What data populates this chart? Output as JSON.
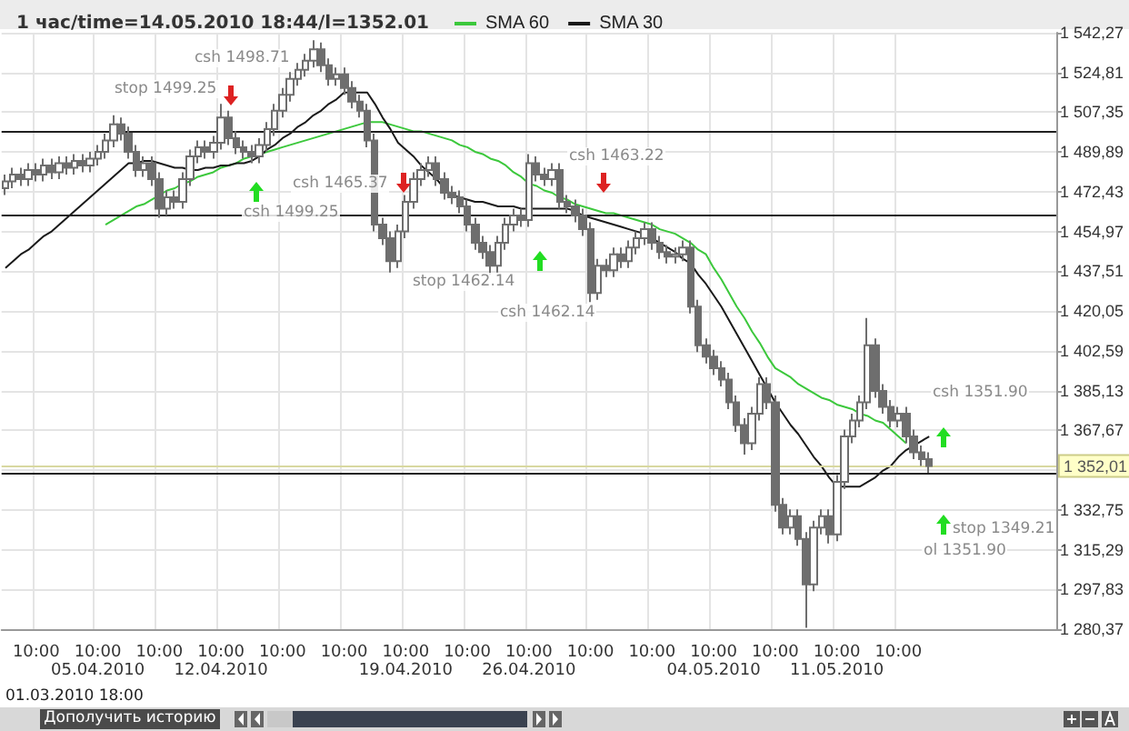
{
  "chart_data": {
    "type": "candlestick",
    "title": "1 час/time=14.05.2010 18:44/l=1352.01",
    "categories": [
      null,
      null,
      null,
      null,
      "10:00",
      null,
      null,
      null,
      null,
      null,
      null,
      null,
      "10:00\n05.04.2010",
      null,
      null,
      null,
      null,
      null,
      null,
      null,
      "10:00",
      null,
      null,
      null,
      null,
      null,
      null,
      null,
      "10:00\n12.04.2010",
      null,
      null,
      null,
      null,
      null,
      null,
      null,
      "10:00",
      null,
      null,
      null,
      null,
      null,
      null,
      null,
      "10:00",
      null,
      null,
      null,
      null,
      null,
      null,
      null,
      "10:00\n19.04.2010",
      null,
      null,
      null,
      null,
      null,
      null,
      null,
      "10:00",
      null,
      null,
      null,
      null,
      null,
      null,
      null,
      "10:00\n26.04.2010",
      null,
      null,
      null,
      null,
      null,
      null,
      null,
      "10:00",
      null,
      null,
      null,
      null,
      null,
      null,
      null,
      "10:00",
      null,
      null,
      null,
      null,
      null,
      null,
      null,
      "10:00\n04.05.2010",
      null,
      null,
      null,
      null,
      null,
      null,
      null,
      "10:00",
      null,
      null,
      null,
      null,
      null,
      null,
      null,
      "10:00\n11.05.2010",
      null,
      null,
      null,
      null,
      null,
      null,
      null,
      "10:00",
      null,
      null,
      null,
      null,
      null,
      null,
      null,
      null,
      null,
      null,
      null,
      null,
      null,
      null,
      null,
      null,
      null,
      null,
      null,
      null
    ],
    "ohlc": [
      [
        1474,
        1480,
        1471,
        1477
      ],
      [
        1477,
        1483,
        1474,
        1480
      ],
      [
        1480,
        1483,
        1475,
        1478
      ],
      [
        1478,
        1485,
        1475,
        1482
      ],
      [
        1482,
        1485,
        1477,
        1480
      ],
      [
        1480,
        1487,
        1477,
        1484
      ],
      [
        1484,
        1487,
        1478,
        1481
      ],
      [
        1481,
        1488,
        1478,
        1485
      ],
      [
        1485,
        1488,
        1480,
        1483
      ],
      [
        1483,
        1489,
        1480,
        1486
      ],
      [
        1486,
        1489,
        1481,
        1484
      ],
      [
        1484,
        1490,
        1481,
        1487
      ],
      [
        1487,
        1493,
        1484,
        1490
      ],
      [
        1490,
        1498,
        1487,
        1495
      ],
      [
        1495,
        1506,
        1492,
        1502
      ],
      [
        1502,
        1505,
        1495,
        1498
      ],
      [
        1498,
        1501,
        1487,
        1490
      ],
      [
        1490,
        1493,
        1479,
        1482
      ],
      [
        1482,
        1488,
        1479,
        1485
      ],
      [
        1485,
        1488,
        1475,
        1478
      ],
      [
        1478,
        1481,
        1461,
        1465
      ],
      [
        1465,
        1473,
        1462,
        1470
      ],
      [
        1470,
        1473,
        1465,
        1468
      ],
      [
        1468,
        1481,
        1465,
        1478
      ],
      [
        1478,
        1491,
        1475,
        1488
      ],
      [
        1488,
        1495,
        1485,
        1492
      ],
      [
        1492,
        1495,
        1487,
        1490
      ],
      [
        1490,
        1497,
        1487,
        1494
      ],
      [
        1494,
        1511,
        1491,
        1505
      ],
      [
        1505,
        1508,
        1493,
        1496
      ],
      [
        1496,
        1499,
        1489,
        1492
      ],
      [
        1492,
        1495,
        1487,
        1490
      ],
      [
        1490,
        1493,
        1485,
        1488
      ],
      [
        1488,
        1496,
        1485,
        1493
      ],
      [
        1493,
        1503,
        1490,
        1500
      ],
      [
        1500,
        1511,
        1497,
        1508
      ],
      [
        1508,
        1518,
        1505,
        1515
      ],
      [
        1515,
        1525,
        1512,
        1522
      ],
      [
        1522,
        1529,
        1519,
        1526
      ],
      [
        1526,
        1533,
        1523,
        1530
      ],
      [
        1530,
        1539,
        1527,
        1535
      ],
      [
        1535,
        1538,
        1525,
        1528
      ],
      [
        1528,
        1531,
        1519,
        1522
      ],
      [
        1522,
        1527,
        1519,
        1524
      ],
      [
        1524,
        1527,
        1515,
        1518
      ],
      [
        1518,
        1521,
        1509,
        1512
      ],
      [
        1512,
        1515,
        1505,
        1508
      ],
      [
        1508,
        1511,
        1492,
        1495
      ],
      [
        1495,
        1498,
        1455,
        1458
      ],
      [
        1458,
        1461,
        1449,
        1452
      ],
      [
        1452,
        1455,
        1437,
        1442
      ],
      [
        1442,
        1458,
        1439,
        1455
      ],
      [
        1455,
        1471,
        1452,
        1468
      ],
      [
        1468,
        1481,
        1465,
        1478
      ],
      [
        1478,
        1485,
        1475,
        1482
      ],
      [
        1482,
        1488,
        1479,
        1485
      ],
      [
        1485,
        1488,
        1475,
        1478
      ],
      [
        1478,
        1481,
        1469,
        1472
      ],
      [
        1472,
        1475,
        1467,
        1470
      ],
      [
        1470,
        1473,
        1463,
        1466
      ],
      [
        1466,
        1469,
        1455,
        1458
      ],
      [
        1458,
        1461,
        1447,
        1450
      ],
      [
        1450,
        1453,
        1443,
        1446
      ],
      [
        1446,
        1449,
        1436,
        1440
      ],
      [
        1440,
        1453,
        1437,
        1450
      ],
      [
        1450,
        1461,
        1447,
        1458
      ],
      [
        1458,
        1465,
        1455,
        1462
      ],
      [
        1462,
        1465,
        1457,
        1460
      ],
      [
        1460,
        1489,
        1457,
        1485
      ],
      [
        1485,
        1488,
        1477,
        1480
      ],
      [
        1480,
        1483,
        1475,
        1478
      ],
      [
        1478,
        1485,
        1475,
        1482
      ],
      [
        1482,
        1485,
        1465,
        1468
      ],
      [
        1468,
        1471,
        1463,
        1466
      ],
      [
        1466,
        1469,
        1459,
        1462
      ],
      [
        1462,
        1465,
        1453,
        1456
      ],
      [
        1456,
        1459,
        1424,
        1428
      ],
      [
        1428,
        1443,
        1425,
        1440
      ],
      [
        1440,
        1443,
        1435,
        1438
      ],
      [
        1438,
        1448,
        1435,
        1445
      ],
      [
        1445,
        1448,
        1439,
        1442
      ],
      [
        1442,
        1451,
        1439,
        1448
      ],
      [
        1448,
        1455,
        1445,
        1452
      ],
      [
        1452,
        1459,
        1449,
        1456
      ],
      [
        1456,
        1459,
        1447,
        1450
      ],
      [
        1450,
        1453,
        1443,
        1446
      ],
      [
        1446,
        1449,
        1441,
        1444
      ],
      [
        1444,
        1448,
        1441,
        1445
      ],
      [
        1445,
        1451,
        1442,
        1448
      ],
      [
        1448,
        1451,
        1419,
        1422
      ],
      [
        1422,
        1425,
        1402,
        1405
      ],
      [
        1405,
        1408,
        1397,
        1400
      ],
      [
        1400,
        1403,
        1392,
        1395
      ],
      [
        1395,
        1398,
        1387,
        1390
      ],
      [
        1390,
        1393,
        1377,
        1380
      ],
      [
        1380,
        1383,
        1367,
        1370
      ],
      [
        1370,
        1373,
        1357,
        1362
      ],
      [
        1362,
        1378,
        1359,
        1375
      ],
      [
        1375,
        1391,
        1372,
        1388
      ],
      [
        1388,
        1391,
        1377,
        1380
      ],
      [
        1380,
        1383,
        1332,
        1335
      ],
      [
        1335,
        1338,
        1322,
        1325
      ],
      [
        1325,
        1333,
        1322,
        1330
      ],
      [
        1330,
        1333,
        1317,
        1320
      ],
      [
        1320,
        1323,
        1281,
        1300
      ],
      [
        1300,
        1328,
        1297,
        1325
      ],
      [
        1325,
        1333,
        1322,
        1330
      ],
      [
        1330,
        1333,
        1318,
        1322
      ],
      [
        1322,
        1348,
        1319,
        1345
      ],
      [
        1345,
        1368,
        1342,
        1365
      ],
      [
        1365,
        1375,
        1362,
        1372
      ],
      [
        1372,
        1383,
        1369,
        1380
      ],
      [
        1380,
        1417,
        1377,
        1405
      ],
      [
        1405,
        1408,
        1382,
        1385
      ],
      [
        1385,
        1388,
        1375,
        1378
      ],
      [
        1378,
        1381,
        1369,
        1372
      ],
      [
        1372,
        1378,
        1369,
        1375
      ],
      [
        1375,
        1378,
        1362,
        1365
      ],
      [
        1365,
        1368,
        1355,
        1358
      ],
      [
        1358,
        1361,
        1352,
        1355
      ],
      [
        1355,
        1358,
        1349,
        1352.01
      ],
      null,
      null,
      null,
      null,
      null,
      null,
      null,
      null,
      null,
      null,
      null,
      null,
      null,
      null,
      null,
      null
    ],
    "color": "#6e6e6e",
    "series": [
      {
        "name": "SMA 60",
        "type": "line",
        "color": "#3cc83c",
        "values": [
          null,
          null,
          null,
          null,
          null,
          null,
          null,
          null,
          null,
          null,
          null,
          null,
          null,
          1458,
          1460,
          1462,
          1464,
          1466,
          1467,
          1469,
          1471,
          1473,
          1474,
          1476,
          1477,
          1479,
          1480,
          1481,
          1483,
          1484,
          1485,
          1487,
          1488,
          1489,
          1490,
          1491,
          1492,
          1493,
          1494,
          1495,
          1496,
          1497,
          1498,
          1499,
          1500,
          1501,
          1502,
          1503,
          1503,
          1503,
          1502,
          1501,
          1500,
          1499,
          1499,
          1498,
          1497,
          1496,
          1495,
          1493,
          1492,
          1490,
          1489,
          1487,
          1486,
          1484,
          1481,
          1479,
          1476,
          1475,
          1473,
          1472,
          1470,
          1469,
          1467,
          1466,
          1465,
          1464,
          1463,
          1463,
          1462,
          1461,
          1460,
          1459,
          1458,
          1456,
          1455,
          1454,
          1452,
          1450,
          1447,
          1445,
          1439,
          1434,
          1428,
          1422,
          1417,
          1411,
          1406,
          1400,
          1395,
          1393,
          1391,
          1388,
          1386,
          1384,
          1382,
          1381,
          1379,
          1378,
          1377,
          1375,
          1374,
          1372,
          1371,
          1368,
          1365,
          1362,
          null,
          null,
          null,
          null,
          null,
          null,
          null,
          null,
          null,
          null,
          null,
          null,
          null,
          null,
          null,
          null,
          null,
          null,
          null
        ]
      },
      {
        "name": "SMA 30",
        "type": "line",
        "color": "#1a1a1a",
        "values": [
          1439,
          1442,
          1445,
          1447,
          1450,
          1453,
          1455,
          1458,
          1461,
          1464,
          1467,
          1470,
          1473,
          1476,
          1479,
          1482,
          1485,
          1485,
          1486,
          1486,
          1485,
          1484,
          1483,
          1483,
          1482,
          1482,
          1483,
          1483,
          1484,
          1484,
          1485,
          1485,
          1486,
          1488,
          1491,
          1493,
          1496,
          1498,
          1501,
          1503,
          1506,
          1508,
          1511,
          1513,
          1516,
          1516,
          1516,
          1516,
          1511,
          1505,
          1500,
          1494,
          1491,
          1488,
          1484,
          1481,
          1478,
          1474,
          1471,
          1470,
          1469,
          1468,
          1468,
          1467,
          1466,
          1466,
          1466,
          1465,
          1465,
          1465,
          1465,
          1465,
          1465,
          1465,
          1464,
          1462,
          1461,
          1460,
          1459,
          1458,
          1457,
          1456,
          1455,
          1454,
          1452,
          1450,
          1448,
          1446,
          1443,
          1441,
          1436,
          1432,
          1427,
          1422,
          1416,
          1410,
          1404,
          1398,
          1392,
          1386,
          1380,
          1375,
          1370,
          1366,
          1361,
          1356,
          1352,
          1347,
          1343,
          1343,
          1343,
          1343,
          1345,
          1347,
          1350,
          1352,
          1356,
          1359,
          1361,
          1363,
          1365,
          null,
          null,
          null,
          null,
          null,
          null,
          null,
          null,
          null,
          null,
          null,
          null,
          null,
          null,
          null,
          null
        ]
      }
    ],
    "ylim": [
      1280.37,
      1542.27
    ],
    "yticks": [
      {
        "value": 1280.37,
        "label": "1 280,37"
      },
      {
        "value": 1297.83,
        "label": "1 297,83"
      },
      {
        "value": 1315.29,
        "label": "1 315,29"
      },
      {
        "value": 1332.75,
        "label": "1 332,75"
      },
      {
        "value": 1350.21,
        "label": null
      },
      {
        "value": 1367.67,
        "label": "1 367,67"
      },
      {
        "value": 1385.13,
        "label": "1 385,13"
      },
      {
        "value": 1402.59,
        "label": "1 402,59"
      },
      {
        "value": 1420.05,
        "label": "1 420,05"
      },
      {
        "value": 1437.51,
        "label": "1 437,51"
      },
      {
        "value": 1454.97,
        "label": "1 454,97"
      },
      {
        "value": 1472.43,
        "label": "1 472,43"
      },
      {
        "value": 1489.89,
        "label": "1 489,89"
      },
      {
        "value": 1507.35,
        "label": "1 507,35"
      },
      {
        "value": 1524.81,
        "label": "1 524,81"
      },
      {
        "value": 1542.27,
        "label": "1 542,27"
      }
    ],
    "ref_lines": [
      {
        "axis": "y",
        "value": 1499.25,
        "color": "#202020"
      },
      {
        "axis": "y",
        "value": 1462.14,
        "color": "#202020"
      },
      {
        "axis": "y",
        "value": 1349.21,
        "color": "#202020"
      },
      {
        "axis": "y",
        "value": 1352.01,
        "label": "1 352,01",
        "color": "#d8d8a0"
      }
    ],
    "annotations": [
      "stop 1499.25",
      "csh 1498.71",
      "csh 1499.25",
      "csh 1465.37",
      "stop 1462.14",
      "csh 1462.14",
      "csh 1463.22",
      "csh 1351.90",
      "stop 1349.21",
      "ol 1351.90",
      "01.03.2010 18:00",
      "Дополучить историю"
    ],
    "grid": true,
    "legend": "top",
    "marker": "none"
  }
}
